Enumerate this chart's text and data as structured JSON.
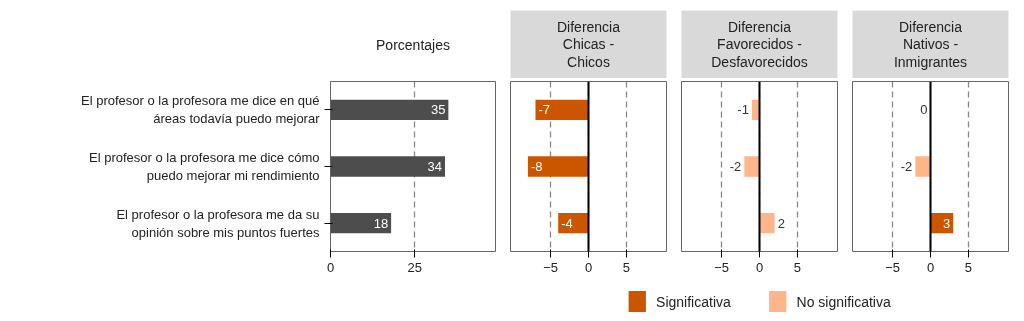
{
  "chart_data": [
    {
      "type": "bar",
      "orientation": "horizontal",
      "title": "Porcentajes",
      "categories": [
        "El profesor o la profesora me dice en qué\náreas todavía puedo mejorar",
        "El profesor o la profesora me dice cómo\npuedo mejorar mi rendimiento",
        "El profesor o la profesora me da su\nopinión sobre mis puntos fuertes"
      ],
      "series": [
        {
          "color": "#4d4d4d",
          "values": [
            35,
            34,
            18
          ]
        }
      ],
      "xlim": [
        0,
        49
      ],
      "xticks": [
        0,
        25
      ],
      "grid": "x",
      "data_labels": true
    },
    {
      "type": "bar",
      "orientation": "horizontal",
      "title": "Diferencia\nChicas -\nChicos",
      "categories": [
        null,
        null,
        null
      ],
      "series": [
        {
          "color": "#cc5500",
          "values": [
            -7,
            -8,
            -4
          ]
        }
      ],
      "xlim": [
        -10.3,
        10.3
      ],
      "xticks": [
        -5,
        0,
        5
      ],
      "grid": "x",
      "tick_labels": "x",
      "data_labels": true,
      "ref_lines": [
        {
          "axis": "x",
          "value": 0,
          "color": "#000000"
        }
      ]
    },
    {
      "type": "bar",
      "orientation": "horizontal",
      "title": "Diferencia\nFavorecidos -\nDesfavorecidos",
      "categories": [
        null,
        null,
        null
      ],
      "series": [
        {
          "name": "Significativa",
          "color": "#cc5500",
          "values": [
            null,
            null,
            null
          ]
        },
        {
          "color": "#fdb68a",
          "values": [
            -1,
            -2,
            2
          ]
        }
      ],
      "xlim": [
        -10.3,
        10.3
      ],
      "xticks": [
        -5,
        0,
        5
      ],
      "grid": "x",
      "tick_labels": "x",
      "data_labels": true,
      "legend": "bottom",
      "ref_lines": [
        {
          "axis": "x",
          "value": 0,
          "color": "#000000"
        }
      ]
    },
    {
      "type": "bar",
      "orientation": "horizontal",
      "title": "Diferencia\nNativos -\nInmigrantes",
      "categories": [
        null,
        null,
        null
      ],
      "series": [
        {
          "color": "#cc5500",
          "values": [
            null,
            null,
            3
          ]
        },
        {
          "name": "No significativa",
          "color": "#fdb68a",
          "values": [
            0,
            -2,
            null
          ]
        }
      ],
      "xlim": [
        -10.3,
        10.3
      ],
      "xticks": [
        -5,
        0,
        5
      ],
      "grid": "x",
      "tick_labels": "x",
      "data_labels": true,
      "legend": "bottom",
      "ref_lines": [
        {
          "axis": "x",
          "value": 0,
          "color": "#000000"
        }
      ]
    }
  ]
}
